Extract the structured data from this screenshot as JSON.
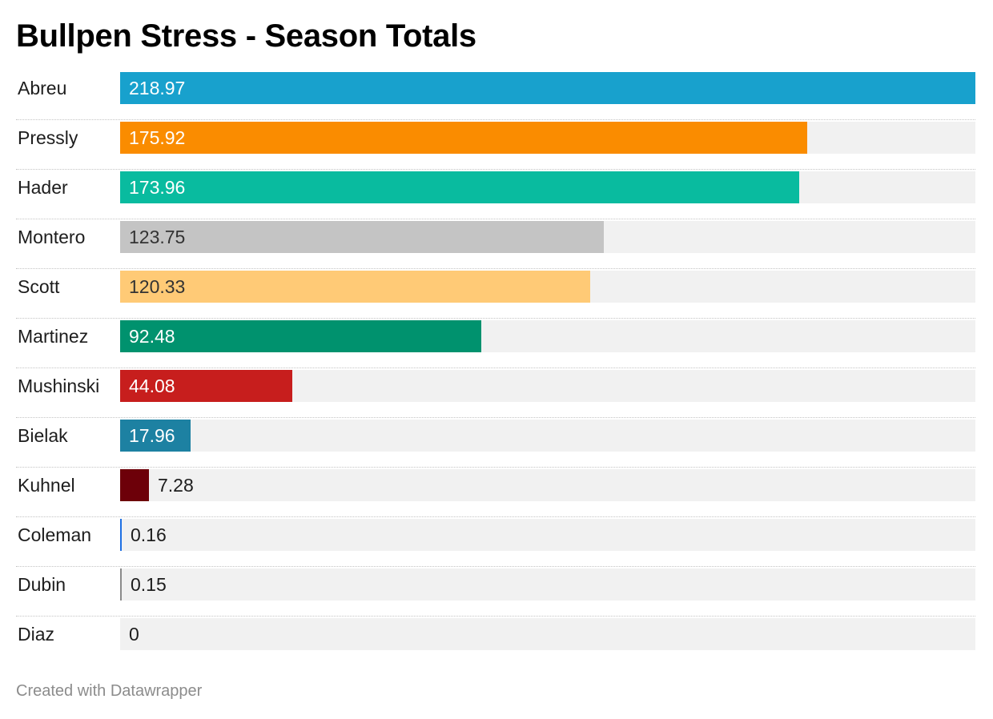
{
  "chart_data": {
    "type": "bar",
    "orientation": "horizontal",
    "title": "Bullpen Stress - Season Totals",
    "categories": [
      "Abreu",
      "Pressly",
      "Hader",
      "Montero",
      "Scott",
      "Martinez",
      "Mushinski",
      "Bielak",
      "Kuhnel",
      "Coleman",
      "Dubin",
      "Diaz"
    ],
    "values": [
      218.97,
      175.92,
      173.96,
      123.75,
      120.33,
      92.48,
      44.08,
      17.96,
      7.28,
      0.16,
      0.15,
      0
    ],
    "value_labels": [
      "218.97",
      "175.92",
      "173.96",
      "123.75",
      "120.33",
      "92.48",
      "44.08",
      "17.96",
      "7.28",
      "0.16",
      "0.15",
      "0"
    ],
    "colors": [
      "#18a1cd",
      "#fa8c00",
      "#09bb9f",
      "#c4c4c4",
      "#ffca76",
      "#00926e",
      "#c71e1d",
      "#1d81a2",
      "#6d0009",
      "#1d6fe3",
      "#8a8a8a",
      "#dddddd"
    ],
    "label_colors": [
      "#ffffff",
      "#ffffff",
      "#ffffff",
      "#333333",
      "#333333",
      "#ffffff",
      "#ffffff",
      "#ffffff",
      "#1d1d1d",
      "#1d1d1d",
      "#1d1d1d",
      "#1d1d1d"
    ],
    "xlim": [
      0,
      218.97
    ],
    "track_color": "#f1f1f1",
    "grid": false,
    "legend": "none"
  },
  "footer": {
    "credit": "Created with Datawrapper"
  }
}
